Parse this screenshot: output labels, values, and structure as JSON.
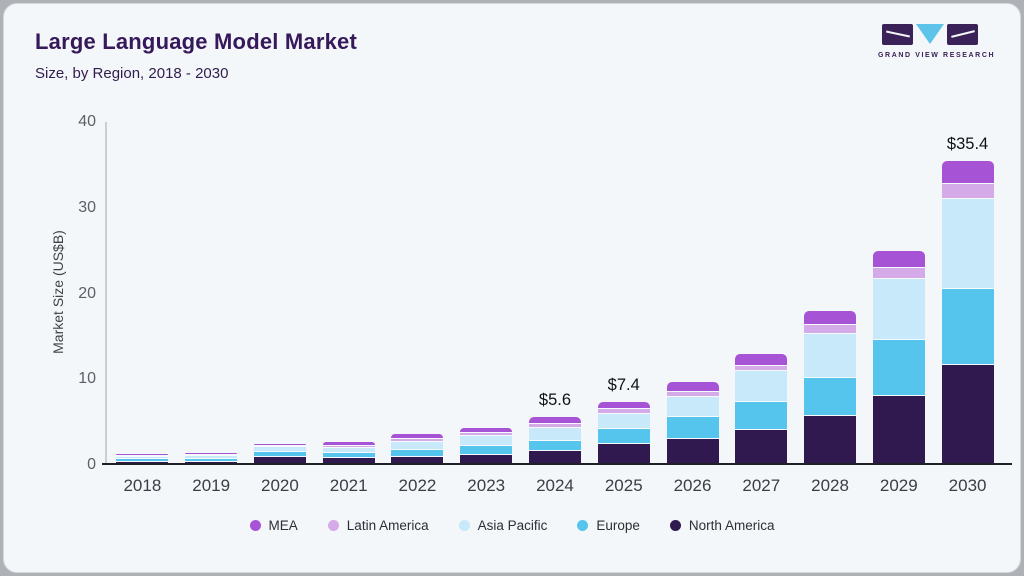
{
  "header": {
    "title": "Large Language Model Market",
    "subtitle": "Size, by Region, 2018 - 2030",
    "logo_text": "GRAND VIEW RESEARCH"
  },
  "chart_data": {
    "type": "bar",
    "stacked": true,
    "title": "Large Language Model Market Size, by Region, 2018 - 2030",
    "ylabel": "Market Size (US$B)",
    "ylim": [
      0,
      40
    ],
    "yticks": [
      0,
      10,
      20,
      30,
      40
    ],
    "grid": false,
    "legend_position": "bottom",
    "categories": [
      "2018",
      "2019",
      "2020",
      "2021",
      "2022",
      "2023",
      "2024",
      "2025",
      "2026",
      "2027",
      "2028",
      "2029",
      "2030"
    ],
    "series": [
      {
        "name": "North America",
        "color": "#30194e",
        "values": [
          0.5,
          0.45,
          1.0,
          0.9,
          1.05,
          1.25,
          1.75,
          2.6,
          3.2,
          4.2,
          5.8,
          8.2,
          11.8
        ]
      },
      {
        "name": "Europe",
        "color": "#55c5ee",
        "values": [
          0.3,
          0.35,
          0.6,
          0.65,
          0.85,
          1.1,
          1.2,
          1.75,
          2.5,
          3.3,
          4.5,
          6.5,
          8.9
        ]
      },
      {
        "name": "Asia Pacific",
        "color": "#c7e9f9",
        "values": [
          0.3,
          0.4,
          0.6,
          0.55,
          0.9,
          1.1,
          1.5,
          1.75,
          2.4,
          3.6,
          5.1,
          7.1,
          10.4
        ]
      },
      {
        "name": "Latin America",
        "color": "#d5aae9",
        "values": [
          0.05,
          0.1,
          0.15,
          0.25,
          0.4,
          0.4,
          0.4,
          0.5,
          0.5,
          0.6,
          1.1,
          1.3,
          1.8
        ]
      },
      {
        "name": "MEA",
        "color": "#a653d6",
        "values": [
          0.05,
          0.1,
          0.15,
          0.3,
          0.4,
          0.5,
          0.75,
          0.8,
          1.1,
          1.3,
          1.5,
          1.9,
          2.5
        ]
      }
    ],
    "totals": [
      1.2,
      1.4,
      2.5,
      2.65,
      3.6,
      4.35,
      5.6,
      7.4,
      9.7,
      13.0,
      18.0,
      25.0,
      35.4
    ],
    "bar_labels": {
      "2024": "$5.6",
      "2025": "$7.4",
      "2030": "$35.4"
    },
    "legend": [
      {
        "label": "MEA",
        "color": "#a653d6"
      },
      {
        "label": "Latin America",
        "color": "#d5aae9"
      },
      {
        "label": "Asia Pacific",
        "color": "#c7e9f9"
      },
      {
        "label": "Europe",
        "color": "#55c5ee"
      },
      {
        "label": "North America",
        "color": "#30194e"
      }
    ]
  }
}
